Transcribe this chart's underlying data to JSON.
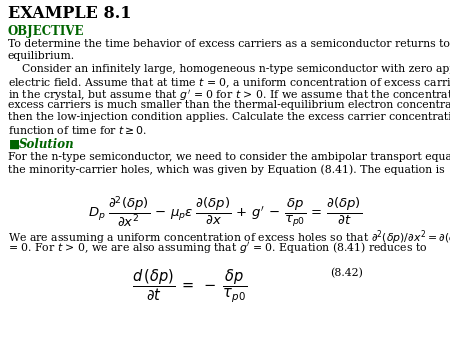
{
  "title": "EXAMPLE 8.1",
  "objective_label": "OBJECTIVE",
  "objective_color": "#006400",
  "title_color": "#000000",
  "bg_color": "#ffffff",
  "solution_label": "Solution",
  "solution_color": "#006400",
  "eq2_label": "(8.42)",
  "font_size_title": 11.5,
  "font_size_body": 7.8,
  "font_size_eq": 9.5,
  "font_size_obj": 8.5
}
